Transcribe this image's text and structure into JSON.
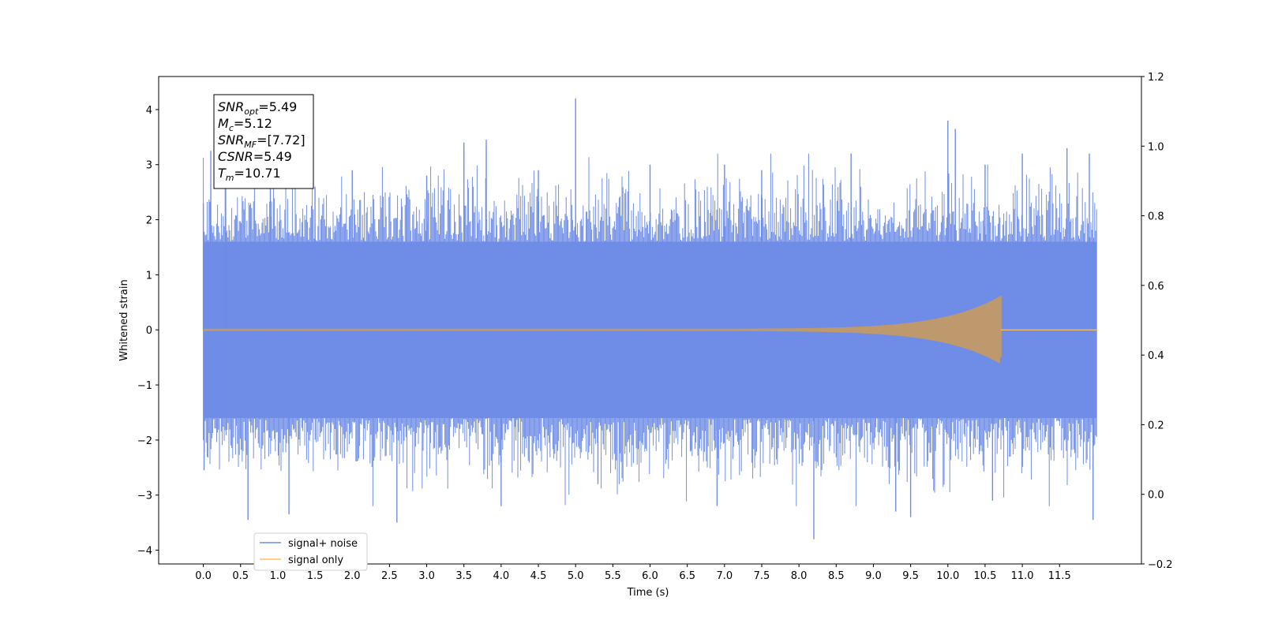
{
  "chart_data": {
    "type": "line",
    "xlabel": "Time (s)",
    "ylabel": "Whitened strain",
    "xlim": [
      -0.6,
      12.6
    ],
    "ylim": [
      -4.25,
      4.6
    ],
    "ylim_right": [
      -0.2,
      1.2
    ],
    "x_ticks": [
      "0.0",
      "0.5",
      "1.0",
      "1.5",
      "2.0",
      "2.5",
      "3.0",
      "3.5",
      "4.0",
      "4.5",
      "5.0",
      "5.5",
      "6.0",
      "6.5",
      "7.0",
      "7.5",
      "8.0",
      "8.5",
      "9.0",
      "9.5",
      "10.0",
      "10.5",
      "11.0",
      "11.5"
    ],
    "y_ticks": [
      "−4",
      "−3",
      "−2",
      "−1",
      "0",
      "1",
      "2",
      "3",
      "4"
    ],
    "y_ticks_right": [
      "−0.2",
      "0.0",
      "0.2",
      "0.4",
      "0.6",
      "0.8",
      "1.0",
      "1.2"
    ],
    "series": [
      {
        "name": "signal+ noise",
        "color": "#6f8de6",
        "x_range": [
          0.0,
          12.0
        ],
        "typical_envelope": 1.6,
        "peaks": [
          {
            "x": 0.0,
            "y": 2.3
          },
          {
            "x": 0.01,
            "y": -2.55
          },
          {
            "x": 0.1,
            "y": 3.25
          },
          {
            "x": 0.3,
            "y": 2.95
          },
          {
            "x": 0.6,
            "y": -3.45
          },
          {
            "x": 0.9,
            "y": 2.7
          },
          {
            "x": 1.15,
            "y": -3.35
          },
          {
            "x": 1.5,
            "y": 2.6
          },
          {
            "x": 2.0,
            "y": 2.9
          },
          {
            "x": 2.6,
            "y": -3.5
          },
          {
            "x": 3.0,
            "y": 2.8
          },
          {
            "x": 3.5,
            "y": 3.4
          },
          {
            "x": 3.8,
            "y": 3.45
          },
          {
            "x": 4.0,
            "y": -3.2
          },
          {
            "x": 4.5,
            "y": 2.9
          },
          {
            "x": 5.0,
            "y": 4.2
          },
          {
            "x": 5.3,
            "y": -2.8
          },
          {
            "x": 6.0,
            "y": 3.0
          },
          {
            "x": 6.9,
            "y": -3.2
          },
          {
            "x": 7.0,
            "y": 3.0
          },
          {
            "x": 7.5,
            "y": 2.9
          },
          {
            "x": 8.2,
            "y": -3.8
          },
          {
            "x": 8.7,
            "y": 3.2
          },
          {
            "x": 9.3,
            "y": -3.3
          },
          {
            "x": 9.5,
            "y": -3.4
          },
          {
            "x": 10.0,
            "y": 3.8
          },
          {
            "x": 10.1,
            "y": 3.65
          },
          {
            "x": 10.5,
            "y": 3.0
          },
          {
            "x": 10.6,
            "y": -3.1
          },
          {
            "x": 11.0,
            "y": 3.2
          },
          {
            "x": 11.6,
            "y": 3.3
          },
          {
            "x": 11.9,
            "y": 3.2
          },
          {
            "x": 11.95,
            "y": -3.45
          }
        ]
      },
      {
        "name": "signal only",
        "color": "#ffc15e",
        "x_range": [
          0.0,
          10.71
        ],
        "merger_time": 10.71,
        "amplitude_start": 0.02,
        "amplitude_peak": 0.62
      }
    ],
    "annotation": {
      "lines": [
        {
          "base": "SNR",
          "sub": "opt",
          "value": "=5.49"
        },
        {
          "base": "M",
          "sub": "c",
          "value": "=5.12"
        },
        {
          "base": "SNR",
          "sub": "MF",
          "value": "=[7.72]"
        },
        {
          "base": "CSNR",
          "sub": "",
          "value": "=5.49"
        },
        {
          "base": "T",
          "sub": "m",
          "value": "=10.71"
        }
      ]
    },
    "legend": {
      "placement": "lower-left",
      "entries": [
        "signal+ noise",
        "signal only"
      ]
    },
    "grid": false
  }
}
